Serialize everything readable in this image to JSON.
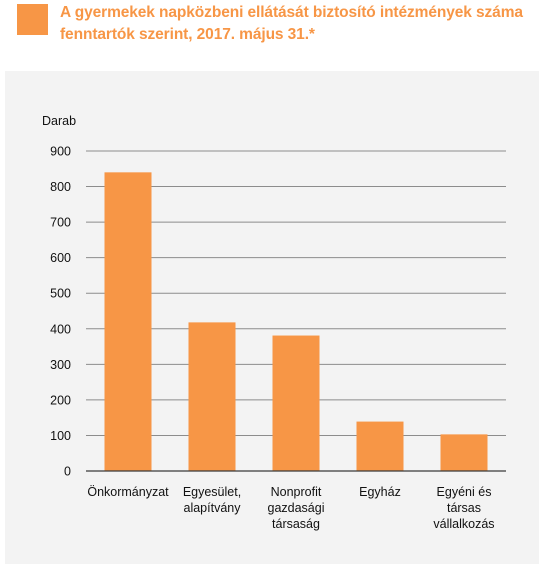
{
  "colors": {
    "accent": "#f79646"
  },
  "header": {
    "title_lines": [
      "A gyermekek napközbeni ellátását biztosító intézmények száma",
      "fenntartók szerint, 2017. május 31.*"
    ]
  },
  "chart_data": {
    "type": "bar",
    "ylabel": "Darab",
    "categories": [
      "Önkormányzat",
      "Egyesület, alapítvány",
      "Nonprofit gazdasági társaság",
      "Egyház",
      "Egyéni és társas vállalkozás"
    ],
    "category_lines": [
      [
        "Önkormányzat"
      ],
      [
        "Egyesület,",
        "alapítvány"
      ],
      [
        "Nonprofit",
        "gazdasági",
        "társaság"
      ],
      [
        "Egyház"
      ],
      [
        "Egyéni és",
        "társas",
        "vállalkozás"
      ]
    ],
    "values": [
      840,
      418,
      381,
      139,
      103
    ],
    "ylim": [
      0,
      900
    ],
    "yticks": [
      0,
      100,
      200,
      300,
      400,
      500,
      600,
      700,
      800,
      900
    ],
    "grid": true,
    "color": "#f79646"
  }
}
